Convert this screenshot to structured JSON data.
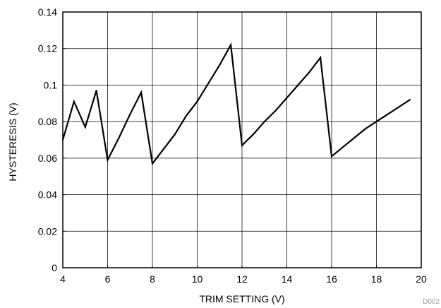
{
  "chart_data": {
    "type": "line",
    "title": "",
    "xlabel": "TRIM SETTING (V)",
    "ylabel": "HYSTERESIS (V)",
    "xlim": [
      4,
      20
    ],
    "ylim": [
      0,
      0.14
    ],
    "x_ticks": [
      "4",
      "6",
      "8",
      "10",
      "12",
      "14",
      "16",
      "18",
      "20"
    ],
    "y_ticks": [
      "0",
      "0.02",
      "0.04",
      "0.06",
      "0.08",
      "0.1",
      "0.12",
      "0.14"
    ],
    "grid": true,
    "legend": "none",
    "series": [
      {
        "color": "#000000",
        "x": [
          4.0,
          4.5,
          5.0,
          5.5,
          6.0,
          6.5,
          7.0,
          7.5,
          8.0,
          8.5,
          9.0,
          9.5,
          10.0,
          10.5,
          11.0,
          11.5,
          12.0,
          12.5,
          13.0,
          13.5,
          14.0,
          14.5,
          15.0,
          15.5,
          16.0,
          16.5,
          17.0,
          17.5,
          18.0,
          18.5,
          19.0,
          19.5
        ],
        "y": [
          0.07,
          0.091,
          0.077,
          0.097,
          0.059,
          0.071,
          0.084,
          0.096,
          0.057,
          0.065,
          0.073,
          0.083,
          0.091,
          0.101,
          0.111,
          0.122,
          0.067,
          0.073,
          0.08,
          0.086,
          0.093,
          0.1,
          0.107,
          0.115,
          0.061,
          0.066,
          0.071,
          0.076,
          0.08,
          0.084,
          0.088,
          0.092
        ]
      }
    ]
  },
  "figure_code": "D002"
}
